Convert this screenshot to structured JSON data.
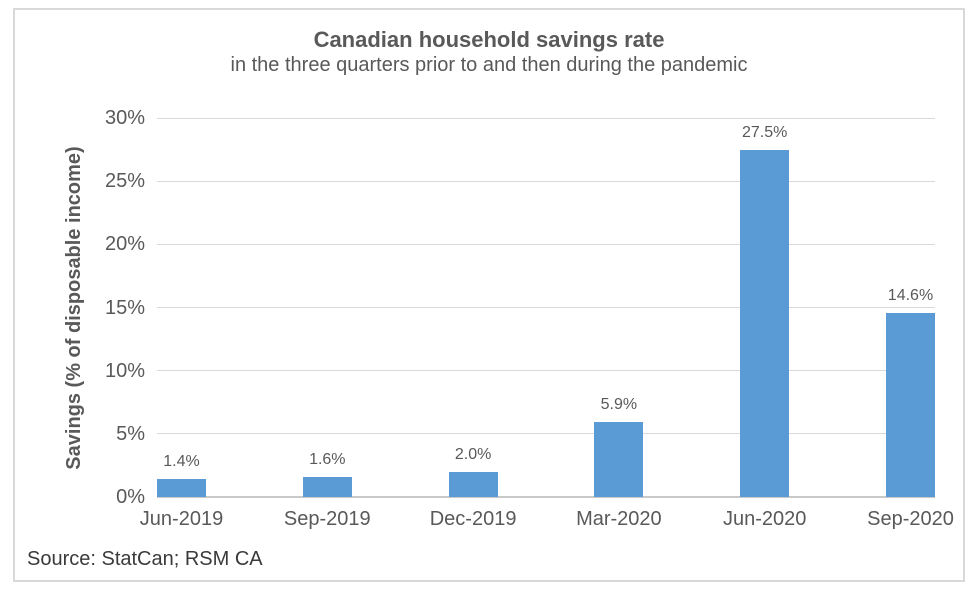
{
  "chart_data": {
    "type": "bar",
    "title": "Canadian household savings rate",
    "subtitle": "in the three quarters prior to and then during the pandemic",
    "categories": [
      "Jun-2019",
      "Sep-2019",
      "Dec-2019",
      "Mar-2020",
      "Jun-2020",
      "Sep-2020"
    ],
    "values": [
      1.4,
      1.6,
      2.0,
      5.9,
      27.5,
      14.6
    ],
    "data_labels": [
      "1.4%",
      "1.6%",
      "2.0%",
      "5.9%",
      "27.5%",
      "14.6%"
    ],
    "xlabel": "",
    "ylabel": "Savings (% of disposable income)",
    "ylim": [
      0,
      30
    ],
    "ytick_step": 5,
    "ytick_labels": [
      "0%",
      "5%",
      "10%",
      "15%",
      "20%",
      "25%",
      "30%"
    ],
    "grid": true,
    "legend": false,
    "bar_color": "#5b9bd5",
    "gridline_color": "#d9d9d9",
    "axis_line_color": "#c9c9c9",
    "text_color": "#595959",
    "source": "Source: StatCan; RSM CA"
  }
}
